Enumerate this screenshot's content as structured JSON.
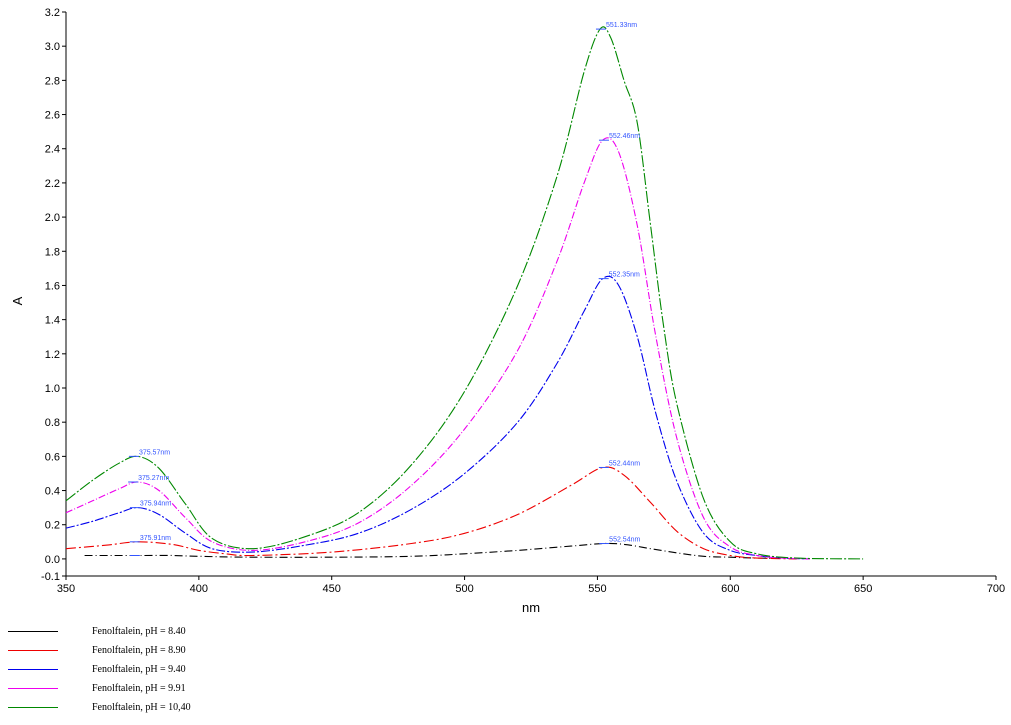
{
  "chart_data": {
    "type": "line",
    "xlabel": "nm",
    "ylabel": "A",
    "xlim": [
      350,
      700
    ],
    "ylim": [
      -0.1,
      3.2
    ],
    "x_ticks": [
      "350",
      "400",
      "450",
      "500",
      "550",
      "600",
      "650",
      "700"
    ],
    "y_ticks": [
      "-0.1",
      "0.0",
      "0.2",
      "0.4",
      "0.6",
      "0.8",
      "1.0",
      "1.2",
      "1.4",
      "1.6",
      "1.8",
      "2.0",
      "2.2",
      "2.4",
      "2.6",
      "2.8",
      "3.0",
      "3.2"
    ],
    "series": [
      {
        "name": "Fenolftalein, pH = 8.40",
        "color": "#000000",
        "x": [
          357,
          370,
          378,
          390,
          400,
          420,
          450,
          480,
          500,
          520,
          540,
          552,
          560,
          570,
          580,
          590,
          600,
          610,
          620
        ],
        "y": [
          0.02,
          0.02,
          0.02,
          0.02,
          0.015,
          0.01,
          0.01,
          0.015,
          0.03,
          0.05,
          0.075,
          0.09,
          0.085,
          0.06,
          0.035,
          0.015,
          0.01,
          0.005,
          0.005
        ],
        "peaks": [
          {
            "x": 375.91,
            "y": 0.02,
            "label": ""
          },
          {
            "x": 552.54,
            "y": 0.09,
            "label": "552.54nm"
          }
        ]
      },
      {
        "name": "Fenolftalein, pH = 8.90",
        "color": "#ee0000",
        "x": [
          350,
          365,
          377,
          390,
          400,
          410,
          420,
          450,
          480,
          500,
          520,
          540,
          552,
          560,
          570,
          580,
          590,
          600,
          610,
          625
        ],
        "y": [
          0.06,
          0.08,
          0.1,
          0.085,
          0.05,
          0.03,
          0.02,
          0.04,
          0.09,
          0.15,
          0.26,
          0.43,
          0.535,
          0.49,
          0.33,
          0.16,
          0.06,
          0.02,
          0.005,
          0.0
        ],
        "peaks": [
          {
            "x": 375.91,
            "y": 0.1,
            "label": "375.91nm"
          },
          {
            "x": 552.44,
            "y": 0.535,
            "label": "552.44nm"
          }
        ]
      },
      {
        "name": "Fenolftalein, pH = 9.40",
        "color": "#0000ee",
        "x": [
          350,
          360,
          370,
          377,
          385,
          395,
          405,
          420,
          440,
          460,
          480,
          500,
          520,
          535,
          545,
          552,
          558,
          565,
          572,
          580,
          590,
          600,
          610,
          620,
          630
        ],
        "y": [
          0.18,
          0.22,
          0.27,
          0.3,
          0.26,
          0.15,
          0.06,
          0.04,
          0.08,
          0.15,
          0.29,
          0.5,
          0.8,
          1.15,
          1.45,
          1.64,
          1.6,
          1.3,
          0.85,
          0.45,
          0.15,
          0.05,
          0.02,
          0.005,
          0.0
        ],
        "peaks": [
          {
            "x": 375.94,
            "y": 0.3,
            "label": "375.94nm"
          },
          {
            "x": 552.35,
            "y": 1.64,
            "label": "552.35nm"
          }
        ]
      },
      {
        "name": "Fenolftalein, pH = 9.91",
        "color": "#ee00ee",
        "x": [
          350,
          360,
          370,
          377,
          385,
          395,
          405,
          420,
          440,
          460,
          480,
          500,
          520,
          535,
          545,
          552,
          558,
          565,
          572,
          580,
          590,
          600,
          610,
          620,
          630
        ],
        "y": [
          0.27,
          0.34,
          0.41,
          0.45,
          0.4,
          0.24,
          0.1,
          0.05,
          0.1,
          0.21,
          0.43,
          0.76,
          1.22,
          1.75,
          2.2,
          2.45,
          2.38,
          1.95,
          1.3,
          0.7,
          0.24,
          0.07,
          0.02,
          0.005,
          0.0
        ],
        "peaks": [
          {
            "x": 375.27,
            "y": 0.45,
            "label": "375.27nm"
          },
          {
            "x": 552.46,
            "y": 2.45,
            "label": "552.46nm"
          }
        ]
      },
      {
        "name": "Fenolftalein, pH = 10,40",
        "color": "#008800",
        "x": [
          350,
          360,
          370,
          377,
          385,
          395,
          405,
          420,
          440,
          460,
          480,
          500,
          520,
          535,
          545,
          551,
          555,
          560,
          565,
          570,
          575,
          580,
          590,
          600,
          610,
          625,
          650
        ],
        "y": [
          0.34,
          0.46,
          0.56,
          0.6,
          0.53,
          0.32,
          0.12,
          0.06,
          0.13,
          0.27,
          0.55,
          0.98,
          1.6,
          2.25,
          2.85,
          3.1,
          3.05,
          2.8,
          2.55,
          1.95,
          1.35,
          0.9,
          0.35,
          0.1,
          0.03,
          0.005,
          0.0
        ],
        "peaks": [
          {
            "x": 375.57,
            "y": 0.6,
            "label": "375.57nm"
          },
          {
            "x": 551.33,
            "y": 3.1,
            "label": "551.33nm"
          }
        ]
      }
    ]
  }
}
